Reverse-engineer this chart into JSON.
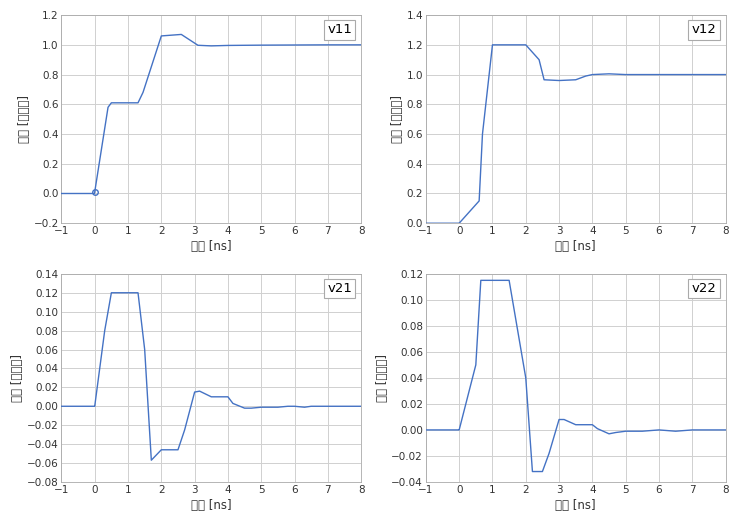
{
  "line_color": "#4472C4",
  "bg_color": "#ffffff",
  "grid_color": "#d0d0d0",
  "ylabel": "振幅 [正規化]",
  "xlabel": "時間 [ns]",
  "subplots": [
    {
      "label": "v11",
      "xlim": [
        -1,
        8
      ],
      "ylim": [
        -0.2,
        1.2
      ],
      "yticks": [
        -0.2,
        0.0,
        0.2,
        0.4,
        0.6,
        0.8,
        1.0,
        1.2
      ],
      "xticks": [
        -1,
        0,
        1,
        2,
        3,
        4,
        5,
        6,
        7,
        8
      ],
      "x": [
        -1.0,
        -0.01,
        0.0,
        0.4,
        0.5,
        1.3,
        1.45,
        2.0,
        2.6,
        3.1,
        3.5,
        4.0,
        5.0,
        6.0,
        7.0,
        8.0
      ],
      "y": [
        0.0,
        0.0,
        0.01,
        0.58,
        0.61,
        0.61,
        0.68,
        1.06,
        1.07,
        0.997,
        0.993,
        0.996,
        0.998,
        0.999,
        1.0,
        1.0
      ],
      "marker_x": [
        0.0
      ],
      "marker_y": [
        0.01
      ]
    },
    {
      "label": "v12",
      "xlim": [
        -1,
        8
      ],
      "ylim": [
        0.0,
        1.4
      ],
      "yticks": [
        0.0,
        0.2,
        0.4,
        0.6,
        0.8,
        1.0,
        1.2,
        1.4
      ],
      "xticks": [
        -1,
        0,
        1,
        2,
        3,
        4,
        5,
        6,
        7,
        8
      ],
      "x": [
        -1.0,
        -0.01,
        0.0,
        0.6,
        0.7,
        1.0,
        1.5,
        2.0,
        2.4,
        2.55,
        3.0,
        3.5,
        3.8,
        4.0,
        4.5,
        5.0,
        6.0,
        7.0,
        8.0
      ],
      "y": [
        0.0,
        0.0,
        0.0,
        0.15,
        0.6,
        1.2,
        1.2,
        1.2,
        1.1,
        0.965,
        0.96,
        0.965,
        0.99,
        1.0,
        1.005,
        1.0,
        1.0,
        1.0,
        1.0
      ],
      "marker_x": [],
      "marker_y": []
    },
    {
      "label": "v21",
      "xlim": [
        -1,
        8
      ],
      "ylim": [
        -0.08,
        0.14
      ],
      "yticks": [
        -0.08,
        -0.06,
        -0.04,
        -0.02,
        0.0,
        0.02,
        0.04,
        0.06,
        0.08,
        0.1,
        0.12,
        0.14
      ],
      "xticks": [
        -1,
        0,
        1,
        2,
        3,
        4,
        5,
        6,
        7,
        8
      ],
      "x": [
        -1.0,
        -0.01,
        0.0,
        0.3,
        0.5,
        1.3,
        1.5,
        1.7,
        2.0,
        2.5,
        2.7,
        3.0,
        3.15,
        3.5,
        3.8,
        4.0,
        4.15,
        4.5,
        4.7,
        5.0,
        5.3,
        5.5,
        5.8,
        6.0,
        6.3,
        6.5,
        7.0,
        7.5,
        8.0
      ],
      "y": [
        0.0,
        0.0,
        0.0,
        0.08,
        0.12,
        0.12,
        0.06,
        -0.057,
        -0.046,
        -0.046,
        -0.025,
        0.015,
        0.016,
        0.01,
        0.01,
        0.01,
        0.003,
        -0.002,
        -0.002,
        -0.001,
        -0.001,
        -0.001,
        0.0,
        0.0,
        -0.001,
        0.0,
        0.0,
        0.0,
        0.0
      ],
      "marker_x": [],
      "marker_y": []
    },
    {
      "label": "v22",
      "xlim": [
        -1,
        8
      ],
      "ylim": [
        -0.04,
        0.12
      ],
      "yticks": [
        -0.04,
        -0.02,
        0.0,
        0.02,
        0.04,
        0.06,
        0.08,
        0.1,
        0.12
      ],
      "xticks": [
        -1,
        0,
        1,
        2,
        3,
        4,
        5,
        6,
        7,
        8
      ],
      "x": [
        -1.0,
        -0.01,
        0.0,
        0.5,
        0.65,
        1.0,
        1.5,
        2.0,
        2.2,
        2.5,
        2.7,
        3.0,
        3.15,
        3.5,
        4.0,
        4.15,
        4.5,
        4.7,
        5.0,
        5.5,
        6.0,
        6.5,
        7.0,
        7.5,
        8.0
      ],
      "y": [
        0.0,
        0.0,
        0.0,
        0.05,
        0.115,
        0.115,
        0.115,
        0.04,
        -0.032,
        -0.032,
        -0.018,
        0.008,
        0.008,
        0.004,
        0.004,
        0.001,
        -0.003,
        -0.002,
        -0.001,
        -0.001,
        0.0,
        -0.001,
        0.0,
        0.0,
        0.0
      ],
      "marker_x": [],
      "marker_y": []
    }
  ]
}
